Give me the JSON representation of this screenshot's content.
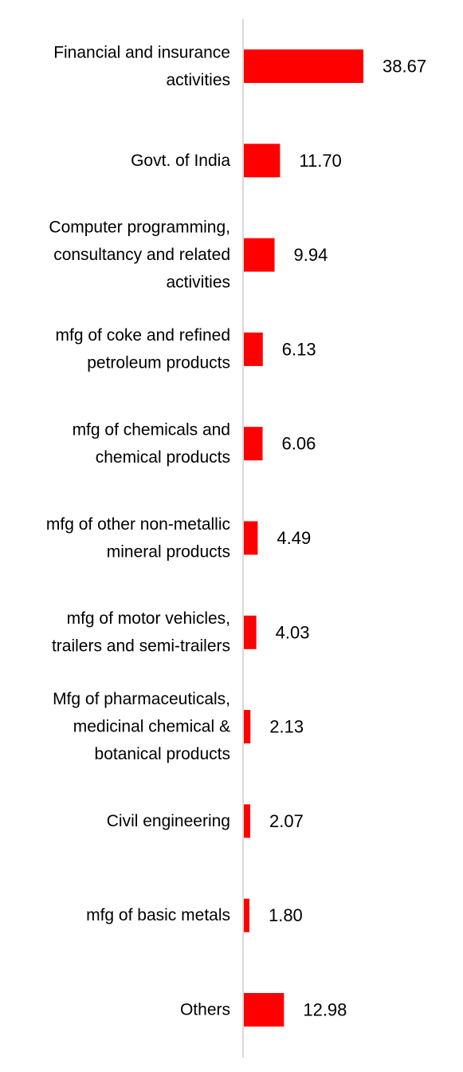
{
  "chart_data": {
    "type": "bar",
    "orientation": "horizontal",
    "categories": [
      [
        "Financial and insurance",
        "activities"
      ],
      [
        "Govt. of India"
      ],
      [
        "Computer programming,",
        "consultancy and related",
        "activities"
      ],
      [
        "mfg of coke and refined",
        "petroleum products"
      ],
      [
        "mfg of chemicals and",
        "chemical products"
      ],
      [
        "mfg of other non-metallic",
        "mineral products"
      ],
      [
        "mfg of motor vehicles,",
        "trailers and semi-trailers"
      ],
      [
        "Mfg of pharmaceuticals,",
        "medicinal chemical &",
        "botanical products"
      ],
      [
        "Civil engineering"
      ],
      [
        "mfg of basic metals"
      ],
      [
        "Others"
      ]
    ],
    "values": [
      38.67,
      11.7,
      9.94,
      6.13,
      6.06,
      4.49,
      4.03,
      2.13,
      2.07,
      1.8,
      12.98
    ],
    "value_labels": [
      "38.67",
      "11.70",
      "9.94",
      "6.13",
      "6.06",
      "4.49",
      "4.03",
      "2.13",
      "2.07",
      "1.80",
      "12.98"
    ],
    "bar_color": "#ff0000",
    "axis_color": "#d9d9d9",
    "xlim": [
      0,
      45
    ],
    "grid": false,
    "legend": "none"
  }
}
